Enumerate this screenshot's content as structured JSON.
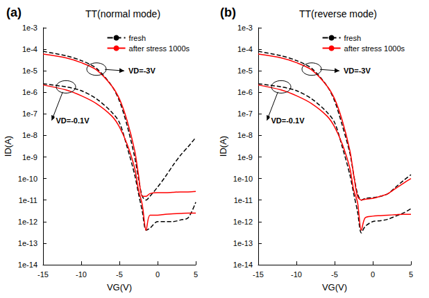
{
  "chart_data": [
    {
      "type": "line",
      "panel": "(a)",
      "title": "TT(normal mode)",
      "x_label": "VG(V)",
      "y_label": "ID(A)",
      "log": "y",
      "grid": false,
      "legend": "upper right",
      "xlim": [
        -15,
        5
      ],
      "xticks": [
        -15,
        -10,
        -5,
        0,
        5
      ],
      "ylim": [
        1e-14,
        0.001
      ],
      "yticks": [
        {
          "value": 1e-14,
          "label": "1e-14"
        },
        {
          "value": 1e-13,
          "label": "1e-13"
        },
        {
          "value": 1e-12,
          "label": "1e-12"
        },
        {
          "value": 1e-11,
          "label": "1e-11"
        },
        {
          "value": 1e-10,
          "label": "1e-10"
        },
        {
          "value": 1e-09,
          "label": "1e-9"
        },
        {
          "value": 1e-08,
          "label": "1e-8"
        },
        {
          "value": 1e-07,
          "label": "1e-7"
        },
        {
          "value": 1e-06,
          "label": "1e-6"
        },
        {
          "value": 1e-05,
          "label": "1e-5"
        },
        {
          "value": 0.0001,
          "label": "1e-4"
        },
        {
          "value": 0.001,
          "label": "1e-3"
        }
      ],
      "x": [
        -15,
        -12,
        -10,
        -8,
        -6,
        -5,
        -4,
        -3,
        -2.5,
        -2,
        -1.5,
        -1,
        0,
        1,
        2,
        3,
        4,
        5
      ],
      "series": [
        {
          "name": "fresh",
          "color": "#000000",
          "line_style": "dashed",
          "values": [
            8e-05,
            5e-05,
            3e-05,
            1.3e-05,
            2e-06,
            4e-07,
            3e-08,
            1e-09,
            1e-10,
            1.5e-11,
            1e-11,
            1.5e-11,
            4e-11,
            1.2e-10,
            4e-10,
            1.2e-09,
            3e-09,
            8e-09
          ]
        },
        {
          "name": "fresh",
          "color": "#000000",
          "line_style": "dashed",
          "values": [
            2.5e-06,
            1.8e-06,
            1.2e-06,
            5e-07,
            1.2e-07,
            4e-08,
            3e-09,
            1.5e-10,
            2e-11,
            3e-12,
            4e-13,
            5e-13,
            1e-12,
            1e-12,
            1e-12,
            1.2e-12,
            1.5e-12,
            8e-12
          ]
        },
        {
          "name": "after stress 1000s",
          "color": "#ff0000",
          "line_style": "solid",
          "values": [
            6e-05,
            4e-05,
            2.4e-05,
            1.1e-05,
            2e-06,
            5e-07,
            5e-08,
            2e-09,
            1.5e-10,
            1.5e-11,
            1.5e-11,
            2e-11,
            2.2e-11,
            2.2e-11,
            2.3e-11,
            2.4e-11,
            2.4e-11,
            2.5e-11
          ]
        },
        {
          "name": "after stress 1000s",
          "color": "#ff0000",
          "line_style": "solid",
          "values": [
            2.2e-06,
            1.3e-06,
            7e-07,
            3e-07,
            8e-08,
            2.5e-08,
            4e-09,
            3e-10,
            3e-11,
            6e-12,
            4e-13,
            2e-12,
            2e-12,
            2.2e-12,
            2.3e-12,
            2.4e-12,
            2.5e-12,
            2.5e-12
          ]
        }
      ],
      "annotations": [
        {
          "text": "VD=-3V",
          "x": -4,
          "y": 1e-05,
          "target_x": -8,
          "target_y": 1.2e-05
        },
        {
          "text": "VD=-0.1V",
          "x": -13.5,
          "y": 5e-08,
          "target_x": -12,
          "target_y": 1.8e-06
        }
      ]
    },
    {
      "type": "line",
      "panel": "(b)",
      "title": "TT(reverse mode)",
      "x_label": "VG(V)",
      "y_label": "ID(A)",
      "log": "y",
      "grid": false,
      "legend": "upper right",
      "xlim": [
        -15,
        5
      ],
      "xticks": [
        -15,
        -10,
        -5,
        0,
        5
      ],
      "ylim": [
        1e-14,
        0.001
      ],
      "yticks": [
        {
          "value": 1e-14,
          "label": "1e-14"
        },
        {
          "value": 1e-13,
          "label": "1e-13"
        },
        {
          "value": 1e-12,
          "label": "1e-12"
        },
        {
          "value": 1e-11,
          "label": "1e-11"
        },
        {
          "value": 1e-10,
          "label": "1e-10"
        },
        {
          "value": 1e-09,
          "label": "1e-9"
        },
        {
          "value": 1e-08,
          "label": "1e-8"
        },
        {
          "value": 1e-07,
          "label": "1e-7"
        },
        {
          "value": 1e-06,
          "label": "1e-6"
        },
        {
          "value": 1e-05,
          "label": "1e-5"
        },
        {
          "value": 0.0001,
          "label": "1e-4"
        },
        {
          "value": 0.001,
          "label": "1e-3"
        }
      ],
      "x": [
        -15,
        -12,
        -10,
        -8,
        -6,
        -5,
        -4,
        -3,
        -2.5,
        -2,
        -1.5,
        -1,
        0,
        1,
        2,
        3,
        4,
        5
      ],
      "series": [
        {
          "name": "fresh",
          "color": "#000000",
          "line_style": "dashed",
          "values": [
            8e-05,
            5e-05,
            3e-05,
            1.3e-05,
            2e-06,
            4e-07,
            3e-08,
            1.5e-09,
            1.5e-10,
            2e-11,
            1e-11,
            1.2e-11,
            1.3e-11,
            1.5e-11,
            2e-11,
            4e-11,
            8e-11,
            1.5e-10
          ]
        },
        {
          "name": "fresh",
          "color": "#000000",
          "line_style": "dashed",
          "values": [
            2.5e-06,
            1.8e-06,
            1.2e-06,
            5e-07,
            1.2e-07,
            4e-08,
            3e-09,
            1.5e-10,
            2e-11,
            3e-12,
            3e-13,
            6e-13,
            1e-12,
            1.1e-12,
            1.3e-12,
            1.8e-12,
            2.5e-12,
            4e-12
          ]
        },
        {
          "name": "after stress 1000s",
          "color": "#ff0000",
          "line_style": "solid",
          "values": [
            6e-05,
            4e-05,
            2.4e-05,
            1.1e-05,
            2e-06,
            5e-07,
            5e-08,
            2e-09,
            1.5e-10,
            1.5e-11,
            1e-11,
            1.1e-11,
            1.2e-11,
            1.5e-11,
            2e-11,
            3.5e-11,
            6e-11,
            1e-10
          ]
        },
        {
          "name": "after stress 1000s",
          "color": "#ff0000",
          "line_style": "solid",
          "values": [
            2.2e-06,
            1.3e-06,
            7e-07,
            3e-07,
            8e-08,
            2.5e-08,
            4e-09,
            3e-10,
            3e-11,
            8e-12,
            4e-13,
            1.5e-12,
            1.8e-12,
            1.9e-12,
            2e-12,
            2.1e-12,
            2.2e-12,
            2.2e-12
          ]
        }
      ],
      "annotations": [
        {
          "text": "VD=-3V",
          "x": -4,
          "y": 1e-05,
          "target_x": -8,
          "target_y": 1.2e-05
        },
        {
          "text": "VD=-0.1V",
          "x": -13.5,
          "y": 5e-08,
          "target_x": -12,
          "target_y": 1.8e-06
        }
      ]
    }
  ]
}
